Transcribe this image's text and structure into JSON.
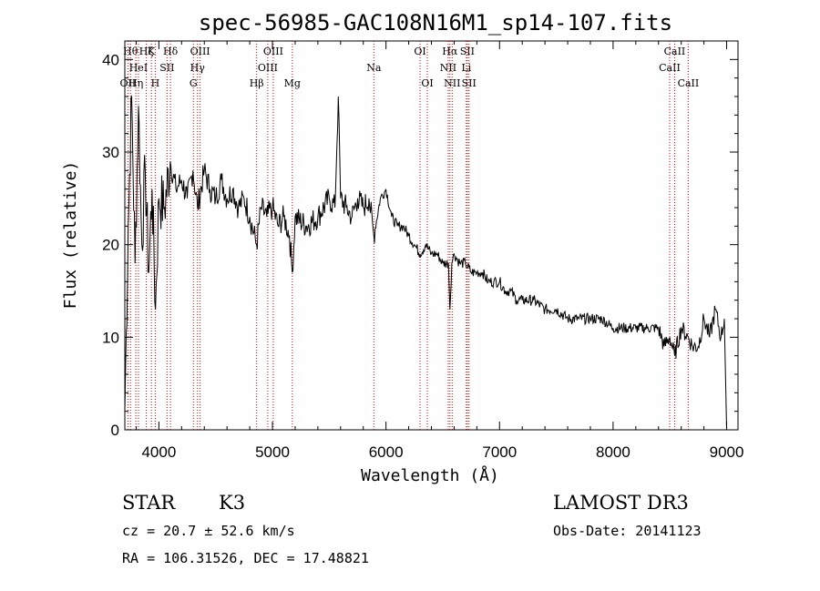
{
  "chart_data": {
    "type": "line",
    "title": "spec-56985-GAC108N16M1_sp14-107.fits",
    "xlabel": "Wavelength (Å)",
    "ylabel": "Flux (relative)",
    "xlim": [
      3700,
      9100
    ],
    "ylim": [
      0,
      42
    ],
    "xticks": [
      4000,
      5000,
      6000,
      7000,
      8000,
      9000
    ],
    "xtick_labels": [
      "4000",
      "5000",
      "6000",
      "7000",
      "8000",
      "9000"
    ],
    "yticks": [
      0,
      10,
      20,
      30,
      40
    ],
    "ytick_labels": [
      "0",
      "10",
      "20",
      "30",
      "40"
    ],
    "grid": false,
    "series": [
      {
        "name": "flux",
        "x": [
          3700,
          3730,
          3760,
          3790,
          3820,
          3850,
          3880,
          3910,
          3940,
          3970,
          4000,
          4050,
          4100,
          4150,
          4200,
          4250,
          4300,
          4340,
          4400,
          4450,
          4500,
          4550,
          4600,
          4650,
          4700,
          4750,
          4800,
          4861,
          4900,
          4950,
          5000,
          5050,
          5100,
          5150,
          5175,
          5200,
          5300,
          5400,
          5500,
          5550,
          5580,
          5600,
          5650,
          5700,
          5750,
          5800,
          5850,
          5893,
          5950,
          6000,
          6050,
          6100,
          6150,
          6200,
          6250,
          6300,
          6350,
          6400,
          6450,
          6500,
          6550,
          6563,
          6580,
          6600,
          6650,
          6700,
          6750,
          6800,
          6850,
          6900,
          6950,
          7000,
          7050,
          7100,
          7150,
          7200,
          7300,
          7400,
          7500,
          7600,
          7700,
          7800,
          7900,
          8000,
          8100,
          8200,
          8300,
          8400,
          8450,
          8500,
          8542,
          8600,
          8662,
          8700,
          8750,
          8800,
          8850,
          8900,
          8950,
          8980,
          9000
        ],
        "y": [
          2,
          22,
          36,
          18,
          35,
          20,
          28,
          17,
          26,
          13,
          25,
          24,
          29,
          26,
          27,
          25,
          28,
          24,
          28,
          26,
          25,
          27,
          25,
          26,
          24,
          25,
          23,
          20,
          24,
          23,
          24,
          22,
          23,
          21,
          17,
          23,
          22,
          23,
          25,
          24,
          36,
          25,
          24,
          23,
          25,
          24,
          25,
          21,
          25,
          26,
          23,
          22,
          22,
          21,
          20,
          19,
          20,
          19,
          19,
          18,
          18,
          13,
          18,
          19,
          18,
          18,
          17,
          17,
          17,
          16,
          16,
          16,
          15,
          15,
          14,
          14,
          14,
          13,
          13,
          12,
          12,
          12,
          12,
          11,
          11,
          11,
          11,
          11,
          9,
          10,
          8,
          11,
          10,
          9,
          9,
          12,
          10,
          13,
          10,
          12,
          0
        ]
      }
    ],
    "line_markers": [
      {
        "wl": 3727,
        "label": "OII",
        "row": 2
      },
      {
        "wl": 3750,
        "label": "Hθ",
        "row": 0
      },
      {
        "wl": 3797,
        "label": "Hη",
        "row": 2
      },
      {
        "wl": 3820,
        "label": "HeI",
        "row": 1
      },
      {
        "wl": 3889,
        "label": "Hζ",
        "row": 0
      },
      {
        "wl": 3934,
        "label": "K",
        "row": 0
      },
      {
        "wl": 3968,
        "label": "H",
        "row": 2
      },
      {
        "wl": 4072,
        "label": "SII",
        "row": 1
      },
      {
        "wl": 4102,
        "label": "Hδ",
        "row": 0
      },
      {
        "wl": 4304,
        "label": "G",
        "row": 2
      },
      {
        "wl": 4340,
        "label": "Hγ",
        "row": 1
      },
      {
        "wl": 4363,
        "label": "OIII",
        "row": 0
      },
      {
        "wl": 4861,
        "label": "Hβ",
        "row": 2
      },
      {
        "wl": 4959,
        "label": "OIII",
        "row": 1
      },
      {
        "wl": 5007,
        "label": "OIII",
        "row": 0
      },
      {
        "wl": 5175,
        "label": "Mg",
        "row": 2
      },
      {
        "wl": 5893,
        "label": "Na",
        "row": 1
      },
      {
        "wl": 6300,
        "label": "OI",
        "row": 0
      },
      {
        "wl": 6364,
        "label": "OI",
        "row": 2
      },
      {
        "wl": 6548,
        "label": "NII",
        "row": 1
      },
      {
        "wl": 6563,
        "label": "Hα",
        "row": 0
      },
      {
        "wl": 6583,
        "label": "NII",
        "row": 2
      },
      {
        "wl": 6708,
        "label": "Li",
        "row": 1
      },
      {
        "wl": 6716,
        "label": "SII",
        "row": 0
      },
      {
        "wl": 6731,
        "label": "SII",
        "row": 2
      },
      {
        "wl": 8498,
        "label": "CaII",
        "row": 1
      },
      {
        "wl": 8542,
        "label": "CaII",
        "row": 0
      },
      {
        "wl": 8662,
        "label": "CaII",
        "row": 2
      }
    ]
  },
  "info": {
    "object_class": "STAR",
    "subclass": "K3",
    "survey": "LAMOST DR3",
    "redshift_line": "cz = 20.7 ± 52.6 km/s",
    "obs_date_line": "Obs-Date: 20141123",
    "coords_line": "RA = 106.31526, DEC =  17.48821"
  }
}
